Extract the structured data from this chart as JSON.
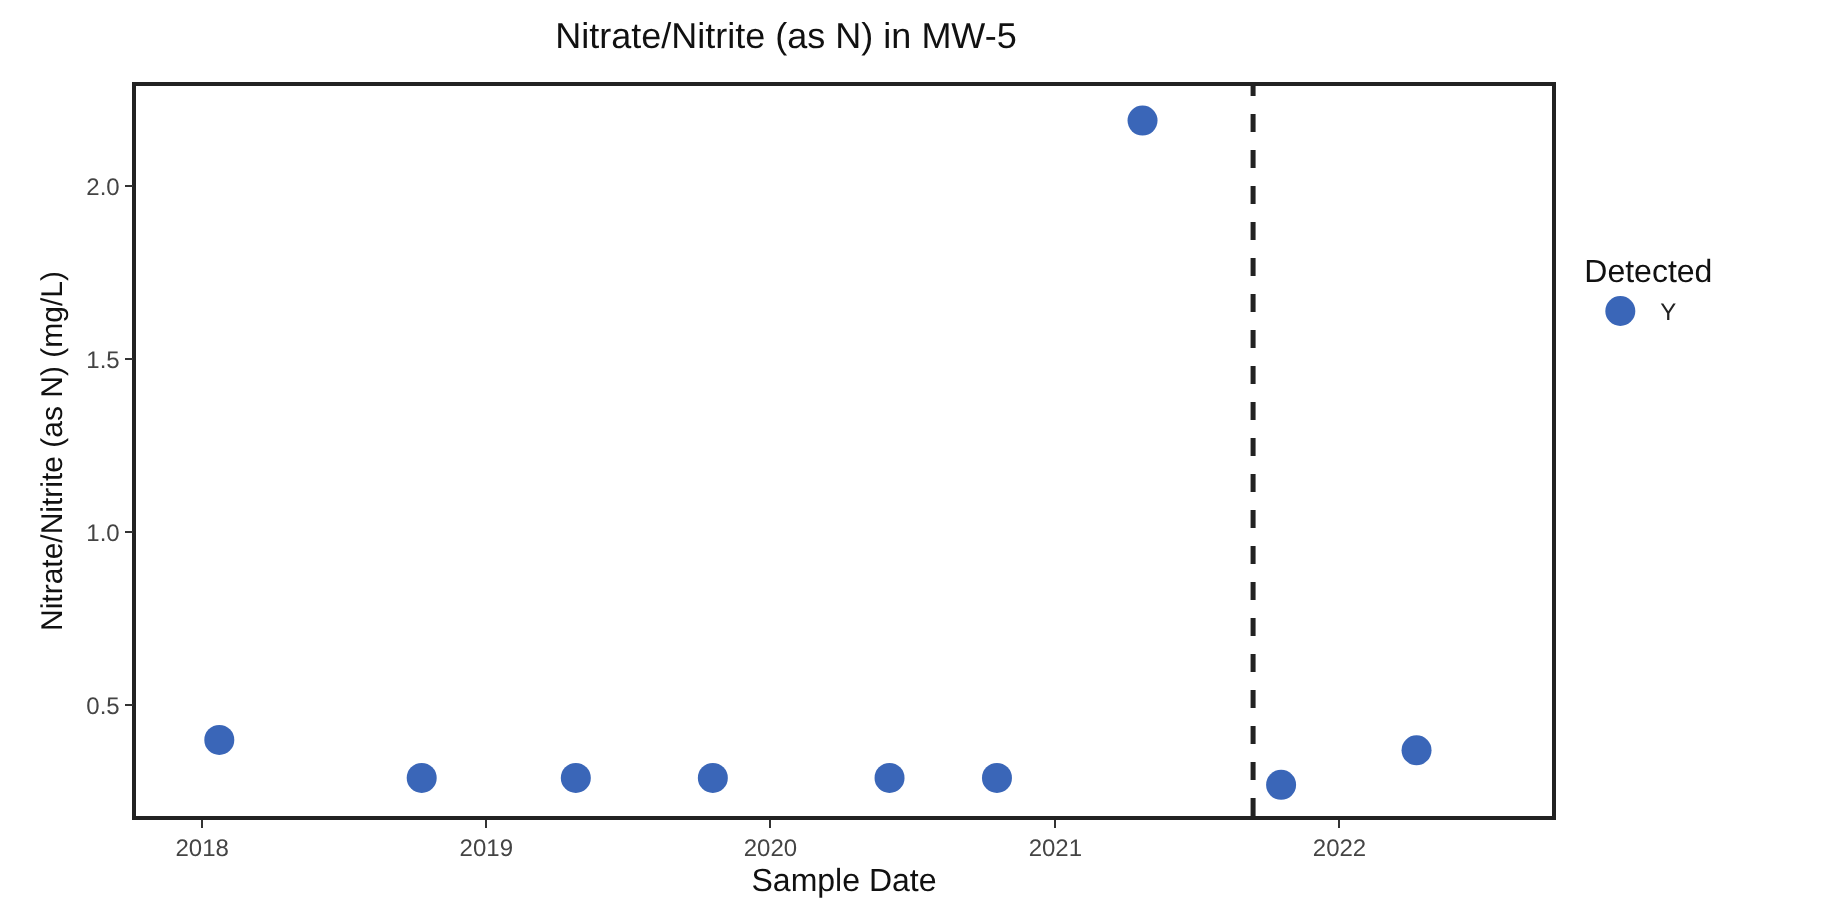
{
  "chart_data": {
    "type": "scatter",
    "title": "Nitrate/Nitrite (as N) in MW-5",
    "xlabel": "Sample Date",
    "ylabel": "Nitrate/Nitrite (as N) (mg/L)",
    "legend_title": "Detected",
    "x": [
      "2018-01-23",
      "2018-10-10",
      "2019-04-26",
      "2019-10-19",
      "2020-06-02",
      "2020-10-18",
      "2021-04-23",
      "2021-10-18",
      "2022-04-10"
    ],
    "series": [
      {
        "name": "Y",
        "color": "#3a66b8",
        "values": [
          0.4,
          0.29,
          0.29,
          0.29,
          0.29,
          0.29,
          2.19,
          0.27,
          0.37
        ]
      }
    ],
    "xlim": [
      "2017-10-08",
      "2022-10-01"
    ],
    "xticks": [
      {
        "value": "2018-01-01",
        "label": "2018"
      },
      {
        "value": "2019-01-01",
        "label": "2019"
      },
      {
        "value": "2020-01-01",
        "label": "2020"
      },
      {
        "value": "2021-01-01",
        "label": "2021"
      },
      {
        "value": "2022-01-01",
        "label": "2022"
      }
    ],
    "ylim": [
      0.18,
      2.29
    ],
    "yticks": [
      {
        "value": 0.5,
        "label": "0.5"
      },
      {
        "value": 1,
        "label": "1.0"
      },
      {
        "value": 1.5,
        "label": "1.5"
      },
      {
        "value": 2,
        "label": "2.0"
      }
    ],
    "ref_lines": [
      {
        "axis": "x",
        "value": "2021-09-12",
        "color": "#222222",
        "line_style": "dashed"
      }
    ],
    "grid": false,
    "legend": "right",
    "marker": "circle"
  }
}
